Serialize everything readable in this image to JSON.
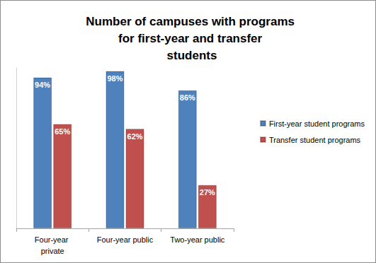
{
  "chart_data": {
    "type": "bar",
    "title": "Number of campuses with programs for first-year and transfer students",
    "categories": [
      "Four-year private",
      "Four-year public",
      "Two-year public"
    ],
    "series": [
      {
        "name": "First-year student programs",
        "color": "#4f81bd",
        "values": [
          94,
          98,
          86
        ],
        "value_labels": [
          "94%",
          "98%",
          "86%"
        ]
      },
      {
        "name": "Transfer student programs",
        "color": "#c0504d",
        "values": [
          65,
          62,
          27
        ],
        "value_labels": [
          "65%",
          "62%",
          "27%"
        ]
      }
    ],
    "ylim": [
      0,
      100
    ],
    "grid": false,
    "legend": "right",
    "data_labels": true,
    "tick_labels": "x"
  }
}
